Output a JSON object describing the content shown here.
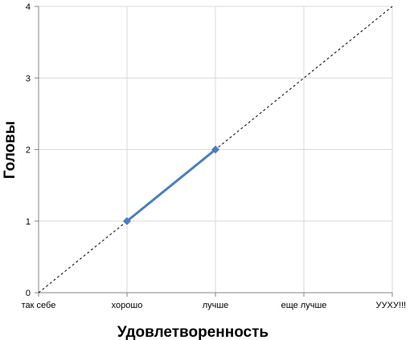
{
  "chart_data": {
    "type": "line",
    "categories": [
      "так себе",
      "хорошо",
      "лучше",
      "еще лучше",
      "УУХУ!!!"
    ],
    "xlabel": "Удовлетворенность",
    "ylabel": "Головы",
    "ylim": [
      0,
      4
    ],
    "yticks": [
      "0",
      "1",
      "2",
      "3",
      "4"
    ],
    "grid": true,
    "legend": "none",
    "series": [
      {
        "values": [
          null,
          1,
          2,
          null,
          null
        ],
        "color": "#4a7ebb",
        "marker": "diamond",
        "style": "solid"
      },
      {
        "values": [
          0,
          1,
          2,
          3,
          4
        ],
        "color": "#000000",
        "marker": "none",
        "style": "dashed"
      }
    ]
  }
}
